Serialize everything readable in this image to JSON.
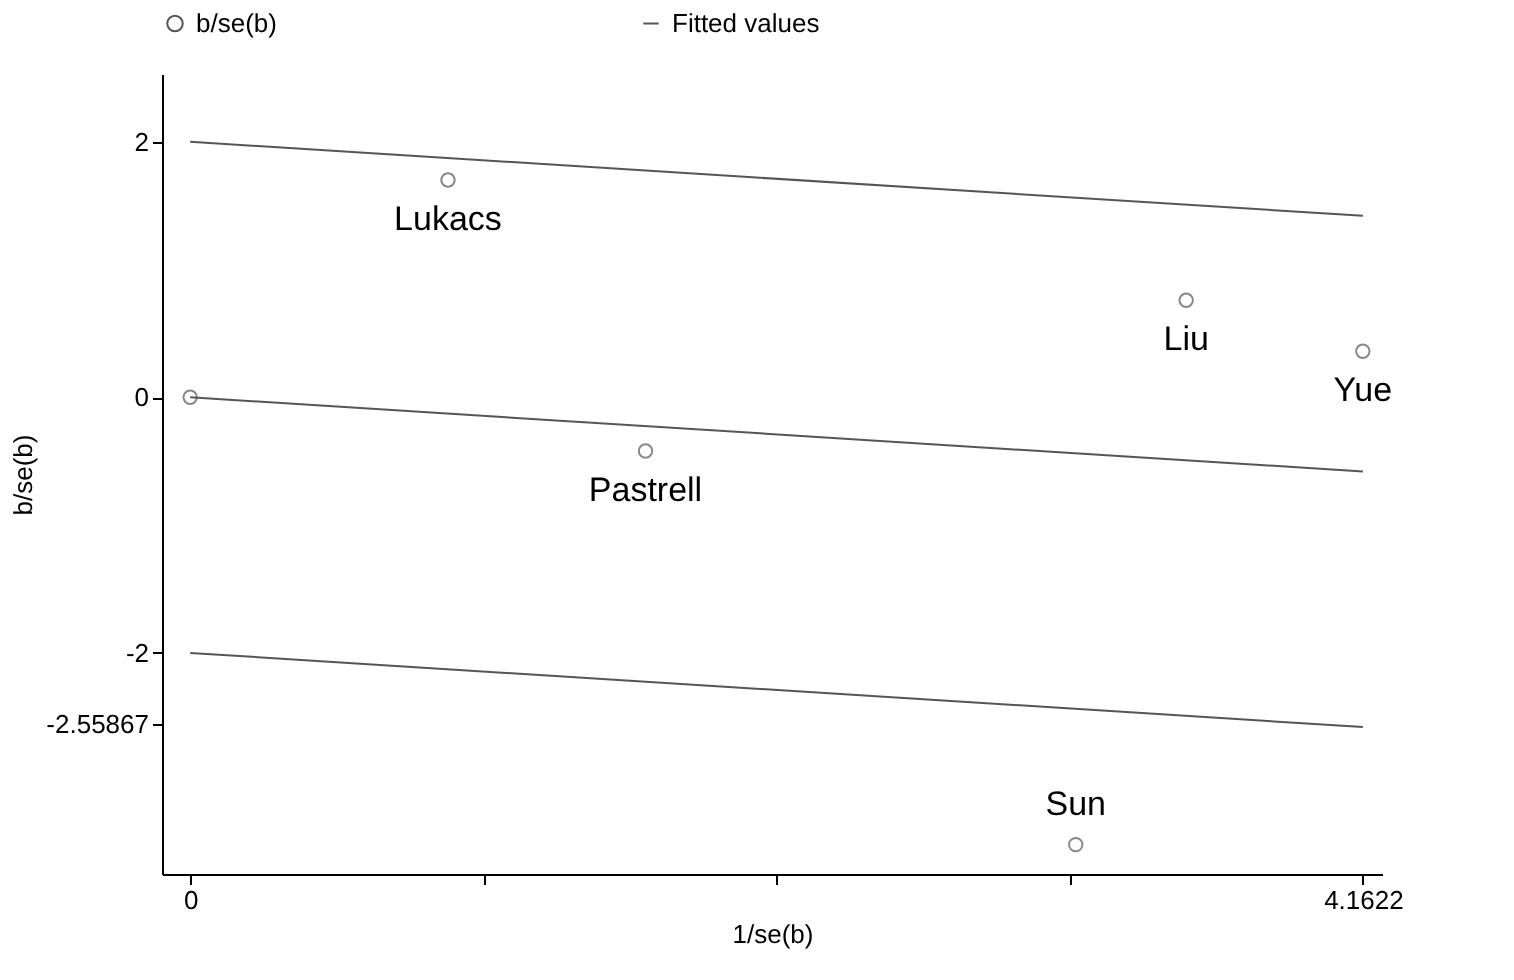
{
  "chart_data": {
    "type": "scatter",
    "xlabel": "1/se(b)",
    "ylabel": "b/se(b)",
    "xlim": [
      -0.1,
      4.23
    ],
    "ylim": [
      -3.73,
      2.53
    ],
    "xticks": [
      0,
      {
        "value": 1.0406,
        "label": null
      },
      {
        "value": 2.0811,
        "label": null
      },
      {
        "value": 3.1217,
        "label": null
      },
      4.1622
    ],
    "yticks": [
      2,
      0,
      -2,
      -2.55867
    ],
    "grid": false,
    "legend": "top",
    "series": [
      {
        "name": "b/se(b)",
        "marker": "circle",
        "color": "#555555",
        "x": [
          0,
          0.915,
          1.616,
          3.535,
          4.162,
          3.143
        ],
        "values": [
          0,
          1.7,
          -0.42,
          0.76,
          0.36,
          -3.5
        ]
      },
      {
        "name": "Fitted values",
        "type": "line",
        "color": "#555555",
        "x": [
          0,
          4.1622
        ],
        "values": [
          0,
          -0.58
        ],
        "marker": "none"
      },
      {
        "type": "line",
        "color": "#555555",
        "x": [
          0,
          4.1622
        ],
        "values": [
          2,
          1.42
        ],
        "marker": "none"
      },
      {
        "type": "line",
        "color": "#555555",
        "x": [
          0,
          4.1622
        ],
        "values": [
          -2,
          -2.58
        ],
        "marker": "none"
      }
    ],
    "annotations": [
      {
        "text": "Lukacs",
        "x": 0.915,
        "y": 1.7
      },
      {
        "text": "Pastrell",
        "x": 1.616,
        "y": -0.42
      },
      {
        "text": "Liu",
        "x": 3.535,
        "y": 0.76
      },
      {
        "text": "Yue",
        "x": 4.162,
        "y": 0.36
      },
      {
        "text": "Sun",
        "x": 3.143,
        "y": -3.5
      }
    ]
  }
}
